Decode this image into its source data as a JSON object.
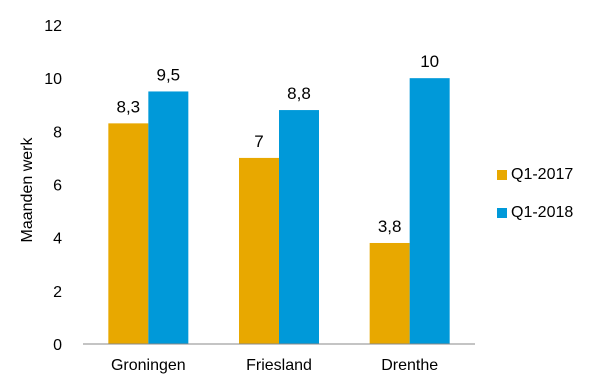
{
  "chart_data": {
    "type": "bar",
    "categories": [
      "Groningen",
      "Friesland",
      "Drenthe"
    ],
    "series": [
      {
        "name": "Q1-2017",
        "values": [
          8.3,
          7,
          3.8
        ],
        "labels": [
          "8,3",
          "7",
          "3,8"
        ],
        "color": "#E8A800"
      },
      {
        "name": "Q1-2018",
        "values": [
          9.5,
          8.8,
          10
        ],
        "labels": [
          "9,5",
          "8,8",
          "10"
        ],
        "color": "#0099D9"
      }
    ],
    "ylabel": "Maanden werk",
    "xlabel": "",
    "ylim": [
      0,
      12
    ],
    "yticks": [
      0,
      2,
      4,
      6,
      8,
      10,
      12
    ],
    "grid": false,
    "legend_position": "right"
  }
}
